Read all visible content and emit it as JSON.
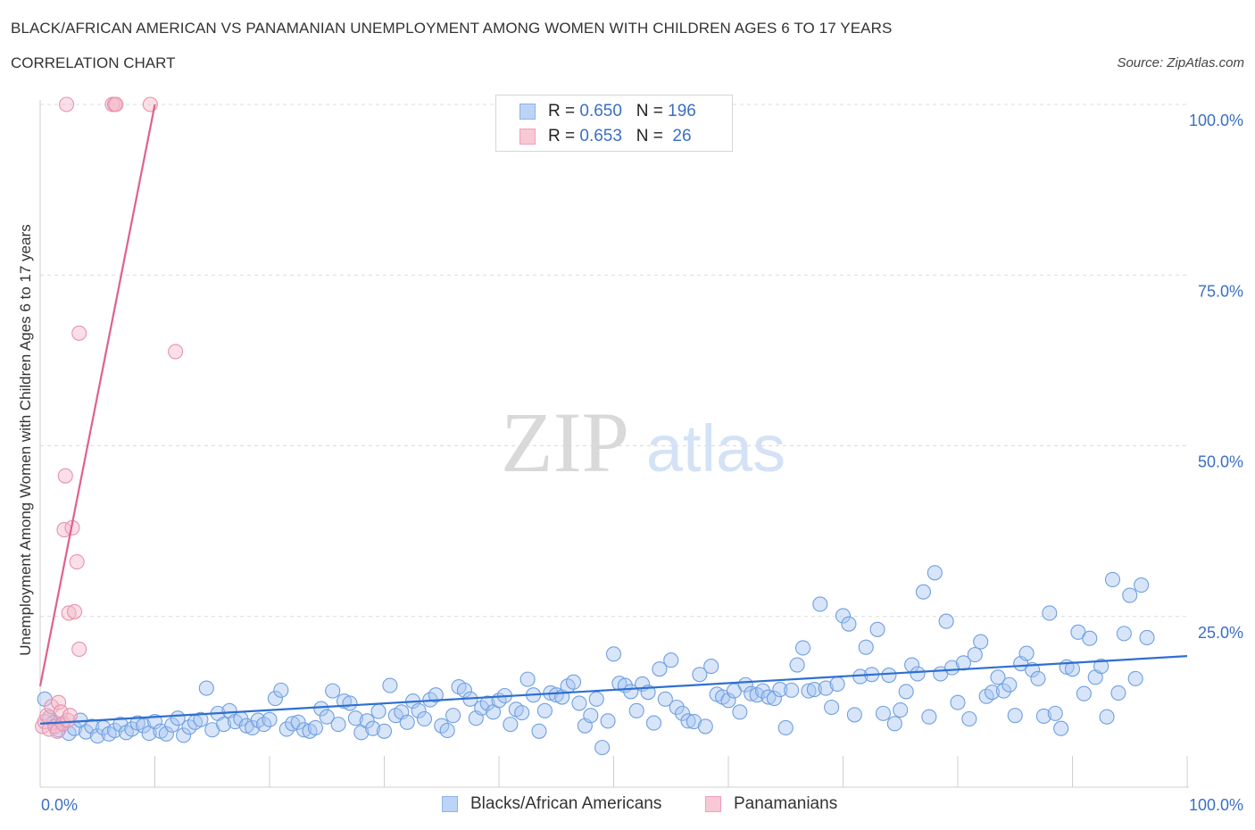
{
  "title": "BLACK/AFRICAN AMERICAN VS PANAMANIAN UNEMPLOYMENT AMONG WOMEN WITH CHILDREN AGES 6 TO 17 YEARS",
  "subtitle": "CORRELATION CHART",
  "source": "Source: ZipAtlas.com",
  "watermark": {
    "zip": "ZIP",
    "atlas": "atlas"
  },
  "legend": [
    {
      "r_label": "R = ",
      "r_value": "0.650",
      "n_label": "N = ",
      "n_value": "196",
      "color": "#a9c6f2"
    },
    {
      "r_label": "R = ",
      "r_value": "0.653",
      "n_label": "N = ",
      "n_value": " 26",
      "color": "#f5b7c9"
    }
  ],
  "chart_data": {
    "type": "scatter",
    "title": "BLACK/AFRICAN AMERICAN VS PANAMANIAN UNEMPLOYMENT AMONG WOMEN WITH CHILDREN AGES 6 TO 17 YEARS",
    "xlabel": "",
    "ylabel": "Unemployment Among Women with Children Ages 6 to 17 years",
    "xlim": [
      0,
      100
    ],
    "ylim": [
      0,
      100
    ],
    "x_tick_labels": [
      "0.0%",
      "100.0%"
    ],
    "y_tick_labels": [
      "25.0%",
      "50.0%",
      "75.0%",
      "100.0%"
    ],
    "y_ticks": [
      25,
      50,
      75,
      100
    ],
    "grid": true,
    "series": [
      {
        "name": "Blacks/African Americans",
        "color": "#6f9fe0",
        "fill": "#a9c6f2",
        "trend": {
          "x0": 0,
          "y0": 9.3,
          "x1": 100,
          "y1": 19.2,
          "color": "#2e6fd0"
        },
        "points": [
          [
            0.4,
            12.9
          ],
          [
            0.8,
            10.2
          ],
          [
            1.2,
            9.5
          ],
          [
            1.6,
            8.4
          ],
          [
            2,
            9.3
          ],
          [
            2.5,
            7.9
          ],
          [
            3,
            8.6
          ],
          [
            3.5,
            9.8
          ],
          [
            4,
            8.1
          ],
          [
            4.5,
            8.9
          ],
          [
            5,
            7.5
          ],
          [
            5.5,
            8.7
          ],
          [
            6,
            7.8
          ],
          [
            6.5,
            8.3
          ],
          [
            7,
            9.2
          ],
          [
            7.5,
            8
          ],
          [
            8,
            8.5
          ],
          [
            8.5,
            9.4
          ],
          [
            9,
            9
          ],
          [
            9.5,
            7.9
          ],
          [
            10,
            9.6
          ],
          [
            10.5,
            8.2
          ],
          [
            11,
            7.8
          ],
          [
            11.5,
            9.1
          ],
          [
            12,
            10.1
          ],
          [
            12.5,
            7.6
          ],
          [
            13,
            8.8
          ],
          [
            13.5,
            9.5
          ],
          [
            14,
            9.9
          ],
          [
            14.5,
            14.5
          ],
          [
            15,
            8.4
          ],
          [
            15.5,
            10.8
          ],
          [
            16,
            9.2
          ],
          [
            16.5,
            11.2
          ],
          [
            17,
            9.6
          ],
          [
            17.5,
            10
          ],
          [
            18,
            9
          ],
          [
            18.5,
            8.7
          ],
          [
            19,
            9.8
          ],
          [
            19.5,
            9.2
          ],
          [
            20,
            9.9
          ],
          [
            20.5,
            13
          ],
          [
            21,
            14.2
          ],
          [
            21.5,
            8.5
          ],
          [
            22,
            9.3
          ],
          [
            22.5,
            9.5
          ],
          [
            23,
            8.4
          ],
          [
            23.5,
            8.2
          ],
          [
            24,
            8.7
          ],
          [
            24.5,
            11.5
          ],
          [
            25,
            10.3
          ],
          [
            25.5,
            14.1
          ],
          [
            26,
            9.2
          ],
          [
            26.5,
            12.6
          ],
          [
            27,
            12.3
          ],
          [
            27.5,
            10.1
          ],
          [
            28,
            8
          ],
          [
            28.5,
            9.7
          ],
          [
            29,
            8.6
          ],
          [
            29.5,
            11.1
          ],
          [
            30,
            8.2
          ],
          [
            30.5,
            14.9
          ],
          [
            31,
            10.5
          ],
          [
            31.5,
            11
          ],
          [
            32,
            9.5
          ],
          [
            32.5,
            12.6
          ],
          [
            33,
            11.2
          ],
          [
            33.5,
            10
          ],
          [
            34,
            12.8
          ],
          [
            34.5,
            13.5
          ],
          [
            35,
            9
          ],
          [
            35.5,
            8.3
          ],
          [
            36,
            10.5
          ],
          [
            36.5,
            14.7
          ],
          [
            37,
            14.2
          ],
          [
            37.5,
            12.9
          ],
          [
            38,
            10.1
          ],
          [
            38.5,
            11.6
          ],
          [
            39,
            12.3
          ],
          [
            39.5,
            11
          ],
          [
            40,
            12.7
          ],
          [
            40.5,
            13.4
          ],
          [
            41,
            9.2
          ],
          [
            41.5,
            11.4
          ],
          [
            42,
            10.9
          ],
          [
            42.5,
            15.8
          ],
          [
            43,
            13.5
          ],
          [
            43.5,
            8.2
          ],
          [
            44,
            11.2
          ],
          [
            44.5,
            13.8
          ],
          [
            45,
            13.5
          ],
          [
            45.5,
            13.2
          ],
          [
            46,
            14.8
          ],
          [
            46.5,
            15.4
          ],
          [
            47,
            12.3
          ],
          [
            47.5,
            9
          ],
          [
            48,
            10.5
          ],
          [
            48.5,
            12.9
          ],
          [
            49,
            5.8
          ],
          [
            49.5,
            9.7
          ],
          [
            50,
            19.5
          ],
          [
            50.5,
            15.2
          ],
          [
            51,
            14.9
          ],
          [
            51.5,
            14
          ],
          [
            52,
            11.2
          ],
          [
            52.5,
            15.1
          ],
          [
            53,
            13.9
          ],
          [
            53.5,
            9.4
          ],
          [
            54,
            17.3
          ],
          [
            54.5,
            12.9
          ],
          [
            55,
            18.6
          ],
          [
            55.5,
            11.7
          ],
          [
            56,
            10.8
          ],
          [
            56.5,
            9.7
          ],
          [
            57,
            9.6
          ],
          [
            57.5,
            16.5
          ],
          [
            58,
            8.9
          ],
          [
            58.5,
            17.7
          ],
          [
            59,
            13.6
          ],
          [
            59.5,
            13.2
          ],
          [
            60,
            12.7
          ],
          [
            60.5,
            14.1
          ],
          [
            61,
            11
          ],
          [
            61.5,
            15
          ],
          [
            62,
            13.7
          ],
          [
            62.5,
            13.5
          ],
          [
            63,
            14.1
          ],
          [
            63.5,
            13.2
          ],
          [
            64,
            13
          ],
          [
            64.5,
            14.3
          ],
          [
            65,
            8.7
          ],
          [
            65.5,
            14.2
          ],
          [
            66,
            17.9
          ],
          [
            66.5,
            20.4
          ],
          [
            67,
            14.1
          ],
          [
            67.5,
            14.3
          ],
          [
            68,
            26.8
          ],
          [
            68.5,
            14.5
          ],
          [
            69,
            11.7
          ],
          [
            69.5,
            15.1
          ],
          [
            70,
            25.1
          ],
          [
            70.5,
            23.9
          ],
          [
            71,
            10.6
          ],
          [
            71.5,
            16.2
          ],
          [
            72,
            20.5
          ],
          [
            72.5,
            16.5
          ],
          [
            73,
            23.1
          ],
          [
            73.5,
            10.8
          ],
          [
            74,
            16.4
          ],
          [
            74.5,
            9.3
          ],
          [
            75,
            11.3
          ],
          [
            75.5,
            14
          ],
          [
            76,
            17.9
          ],
          [
            76.5,
            16.6
          ],
          [
            77,
            28.6
          ],
          [
            77.5,
            10.3
          ],
          [
            78,
            31.4
          ],
          [
            78.5,
            16.6
          ],
          [
            79,
            24.3
          ],
          [
            79.5,
            17.5
          ],
          [
            80,
            12.4
          ],
          [
            80.5,
            18.2
          ],
          [
            81,
            10
          ],
          [
            81.5,
            19.4
          ],
          [
            82,
            21.3
          ],
          [
            82.5,
            13.3
          ],
          [
            83,
            13.9
          ],
          [
            83.5,
            16.1
          ],
          [
            84,
            14.1
          ],
          [
            84.5,
            15
          ],
          [
            85,
            10.5
          ],
          [
            85.5,
            18.1
          ],
          [
            86,
            19.6
          ],
          [
            86.5,
            17.2
          ],
          [
            87,
            15.9
          ],
          [
            87.5,
            10.4
          ],
          [
            88,
            25.5
          ],
          [
            88.5,
            10.8
          ],
          [
            89,
            8.6
          ],
          [
            89.5,
            17.6
          ],
          [
            90,
            17.3
          ],
          [
            90.5,
            22.7
          ],
          [
            91,
            13.7
          ],
          [
            91.5,
            21.8
          ],
          [
            92,
            16.1
          ],
          [
            92.5,
            17.7
          ],
          [
            93,
            10.3
          ],
          [
            93.5,
            30.4
          ],
          [
            94,
            13.8
          ],
          [
            94.5,
            22.5
          ],
          [
            95,
            28.1
          ],
          [
            95.5,
            15.9
          ],
          [
            96,
            29.6
          ],
          [
            96.5,
            21.9
          ]
        ]
      },
      {
        "name": "Panamanians",
        "color": "#e892ad",
        "fill": "#f5b7c9",
        "trend": {
          "x0": 0,
          "y0": 14.8,
          "x1": 10,
          "y1": 100,
          "color": "#e0608e"
        },
        "points": [
          [
            0.2,
            8.9
          ],
          [
            0.4,
            9.6
          ],
          [
            0.6,
            10.5
          ],
          [
            0.8,
            8.5
          ],
          [
            1,
            11.8
          ],
          [
            1.3,
            8.9
          ],
          [
            1.5,
            8.2
          ],
          [
            1.6,
            12.4
          ],
          [
            1.8,
            11
          ],
          [
            2,
            9.3
          ],
          [
            2.1,
            37.7
          ],
          [
            2.2,
            45.6
          ],
          [
            2.3,
            100
          ],
          [
            2.4,
            9.8
          ],
          [
            2.5,
            25.5
          ],
          [
            2.6,
            10.5
          ],
          [
            2.8,
            38
          ],
          [
            3,
            25.7
          ],
          [
            3.2,
            33
          ],
          [
            3.4,
            20.2
          ],
          [
            3.4,
            66.5
          ],
          [
            6.3,
            100
          ],
          [
            6.5,
            100
          ],
          [
            6.6,
            100
          ],
          [
            9.6,
            100
          ],
          [
            11.8,
            63.8
          ]
        ]
      }
    ]
  },
  "bottom_legend": [
    "Blacks/African Americans",
    "Panamanians"
  ]
}
